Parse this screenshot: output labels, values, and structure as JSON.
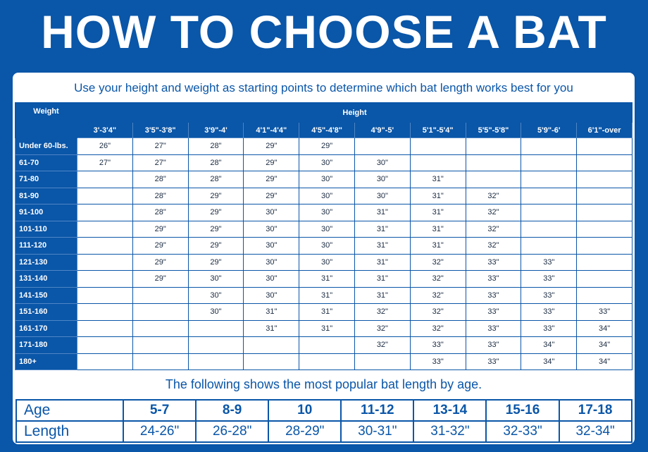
{
  "title": "HOW TO CHOOSE A BAT",
  "subtitle": "Use your height and weight as starting points to determine which bat length works best for you",
  "chart_data": {
    "type": "table",
    "corner_label": "Weight",
    "height_label": "Height",
    "columns": [
      "3'-3'4\"",
      "3'5\"-3'8\"",
      "3'9\"-4'",
      "4'1\"-4'4\"",
      "4'5\"-4'8\"",
      "4'9\"-5'",
      "5'1\"-5'4\"",
      "5'5\"-5'8\"",
      "5'9\"-6'",
      "6'1\"-over"
    ],
    "rows": [
      {
        "weight": "Under 60-lbs.",
        "values": [
          "26\"",
          "27\"",
          "28\"",
          "29\"",
          "29\"",
          "",
          "",
          "",
          "",
          ""
        ]
      },
      {
        "weight": "61-70",
        "values": [
          "27\"",
          "27\"",
          "28\"",
          "29\"",
          "30\"",
          "30\"",
          "",
          "",
          "",
          ""
        ]
      },
      {
        "weight": "71-80",
        "values": [
          "",
          "28\"",
          "28\"",
          "29\"",
          "30\"",
          "30\"",
          "31\"",
          "",
          "",
          ""
        ]
      },
      {
        "weight": "81-90",
        "values": [
          "",
          "28\"",
          "29\"",
          "29\"",
          "30\"",
          "30\"",
          "31\"",
          "32\"",
          "",
          ""
        ]
      },
      {
        "weight": "91-100",
        "values": [
          "",
          "28\"",
          "29\"",
          "30\"",
          "30\"",
          "31\"",
          "31\"",
          "32\"",
          "",
          ""
        ]
      },
      {
        "weight": "101-110",
        "values": [
          "",
          "29\"",
          "29\"",
          "30\"",
          "30\"",
          "31\"",
          "31\"",
          "32\"",
          "",
          ""
        ]
      },
      {
        "weight": "111-120",
        "values": [
          "",
          "29\"",
          "29\"",
          "30\"",
          "30\"",
          "31\"",
          "31\"",
          "32\"",
          "",
          ""
        ]
      },
      {
        "weight": "121-130",
        "values": [
          "",
          "29\"",
          "29\"",
          "30\"",
          "30\"",
          "31\"",
          "32\"",
          "33\"",
          "33\"",
          ""
        ]
      },
      {
        "weight": "131-140",
        "values": [
          "",
          "29\"",
          "30\"",
          "30\"",
          "31\"",
          "31\"",
          "32\"",
          "33\"",
          "33\"",
          ""
        ]
      },
      {
        "weight": "141-150",
        "values": [
          "",
          "",
          "30\"",
          "30\"",
          "31\"",
          "31\"",
          "32\"",
          "33\"",
          "33\"",
          ""
        ]
      },
      {
        "weight": "151-160",
        "values": [
          "",
          "",
          "30\"",
          "31\"",
          "31\"",
          "32\"",
          "32\"",
          "33\"",
          "33\"",
          "33\""
        ]
      },
      {
        "weight": "161-170",
        "values": [
          "",
          "",
          "",
          "31\"",
          "31\"",
          "32\"",
          "32\"",
          "33\"",
          "33\"",
          "34\""
        ]
      },
      {
        "weight": "171-180",
        "values": [
          "",
          "",
          "",
          "",
          "",
          "32\"",
          "33\"",
          "33\"",
          "34\"",
          "34\""
        ]
      },
      {
        "weight": "180+",
        "values": [
          "",
          "",
          "",
          "",
          "",
          "",
          "33\"",
          "33\"",
          "34\"",
          "34\""
        ]
      }
    ]
  },
  "popular_caption": "The following shows the most popular bat length by age.",
  "age_table": {
    "age_label": "Age",
    "length_label": "Length",
    "ages": [
      "5-7",
      "8-9",
      "10",
      "11-12",
      "13-14",
      "15-16",
      "17-18"
    ],
    "lengths": [
      "24-26\"",
      "26-28\"",
      "28-29\"",
      "30-31\"",
      "31-32\"",
      "32-33\"",
      "32-34\""
    ]
  },
  "colors": {
    "brand_blue": "#0a56a8",
    "panel": "#ffffff"
  }
}
